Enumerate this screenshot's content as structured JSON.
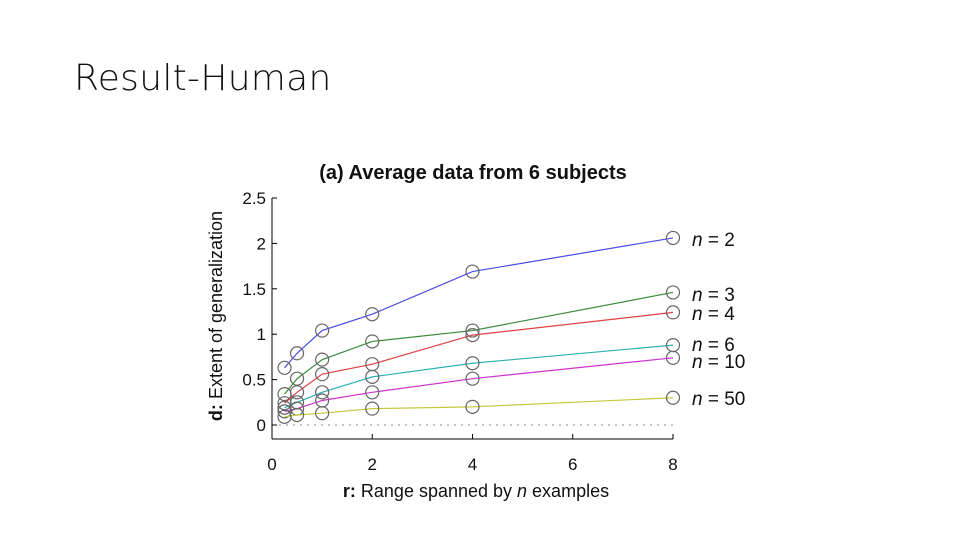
{
  "slide": {
    "title": "Result-Human"
  },
  "chart_data": {
    "type": "line",
    "title": "(a) Average data from 6 subjects",
    "xlabel_prefix": "r:",
    "xlabel_text": " Range spanned by ",
    "xlabel_italic": "n",
    "xlabel_suffix": " examples",
    "ylabel_prefix": "d:",
    "ylabel_text": " Extent of generalization",
    "xlim": [
      0,
      8
    ],
    "ylim": [
      0,
      2.5
    ],
    "xticks": [
      "0",
      "2",
      "4",
      "6",
      "8"
    ],
    "yticks": [
      "0",
      "0.5",
      "1",
      "1.5",
      "2",
      "2.5"
    ],
    "baseline": 0,
    "x": [
      0.25,
      0.5,
      1,
      2,
      4,
      8
    ],
    "series": [
      {
        "name": "n = 2",
        "n_label": "n",
        "eq_label": " = 2",
        "color": "#4a4ae6",
        "values": [
          0.63,
          0.79,
          1.04,
          1.22,
          1.69,
          2.06
        ]
      },
      {
        "name": "n = 3",
        "n_label": "n",
        "eq_label": " = 3",
        "color": "#3a8a3a",
        "values": [
          0.34,
          0.51,
          0.72,
          0.92,
          1.04,
          1.46
        ]
      },
      {
        "name": "n = 4",
        "n_label": "n",
        "eq_label": " = 4",
        "color": "#e04040",
        "values": [
          0.24,
          0.36,
          0.56,
          0.67,
          0.99,
          1.24
        ]
      },
      {
        "name": "n = 6",
        "n_label": "n",
        "eq_label": " = 6",
        "color": "#2ab0b0",
        "values": [
          0.19,
          0.25,
          0.36,
          0.53,
          0.68,
          0.88
        ]
      },
      {
        "name": "n = 10",
        "n_label": "n",
        "eq_label": " = 10",
        "color": "#cc33cc",
        "values": [
          0.15,
          0.18,
          0.27,
          0.36,
          0.51,
          0.74
        ]
      },
      {
        "name": "n = 50",
        "n_label": "n",
        "eq_label": " = 50",
        "color": "#c8c840",
        "values": [
          0.09,
          0.11,
          0.13,
          0.18,
          0.2,
          0.3
        ]
      }
    ],
    "grid": false,
    "legend": "end-of-line labels on the right"
  }
}
